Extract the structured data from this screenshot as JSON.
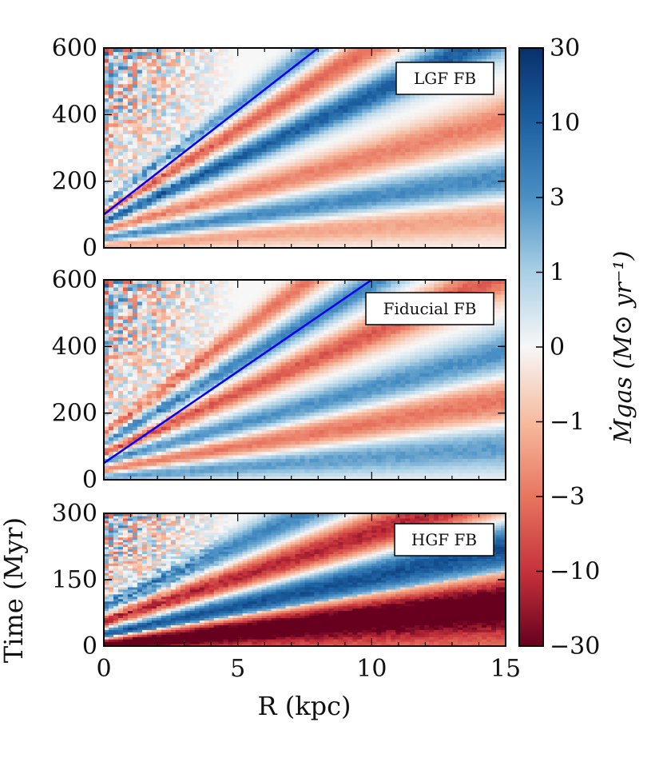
{
  "chart_data": {
    "type": "heatmap",
    "shared_x_axis": {
      "label": "R  (kpc)",
      "range": [
        0,
        15
      ],
      "ticks": [
        "0",
        "5",
        "10",
        "15"
      ]
    },
    "shared_y_axis": {
      "label": "Time  (Myr)"
    },
    "colorbar": {
      "label": "Ṁgas  (M⊙ yr⁻¹)",
      "scale": "symlog",
      "range": [
        -30,
        30
      ],
      "ticks": [
        "30",
        "10",
        "3",
        "1",
        "0",
        "−1",
        "−3",
        "−10",
        "−30"
      ],
      "colors": {
        "positive_max": "#08306b",
        "positive_mid": "#4a90c4",
        "zero": "#f7f7f7",
        "negative_mid": "#e8755f",
        "negative_max": "#67001f"
      }
    },
    "panels": [
      {
        "label": "LGF FB",
        "ylim": [
          0,
          600
        ],
        "yticks": [
          "0",
          "200",
          "400",
          "600"
        ],
        "reference_line": {
          "color": "#0000ff",
          "x": [
            0,
            8
          ],
          "y": [
            100,
            600
          ]
        },
        "bands": [
          {
            "sign": "negative",
            "amplitude": 0.35,
            "t0": 10,
            "slope": 6
          },
          {
            "sign": "positive",
            "amplitude": 0.55,
            "t0": 30,
            "slope": 12
          },
          {
            "sign": "negative",
            "amplitude": 0.45,
            "t0": 55,
            "slope": 22
          },
          {
            "sign": "positive",
            "amplitude": 0.75,
            "t0": 80,
            "slope": 38
          },
          {
            "sign": "negative",
            "amplitude": 0.55,
            "t0": 105,
            "slope": 50
          },
          {
            "sign": "positive",
            "amplitude": 0.45,
            "t0": 130,
            "slope": 60
          }
        ]
      },
      {
        "label": "Fiducial FB",
        "ylim": [
          0,
          600
        ],
        "yticks": [
          "0",
          "200",
          "400",
          "600"
        ],
        "reference_line": {
          "color": "#0000ff",
          "x": [
            0,
            10
          ],
          "y": [
            50,
            600
          ]
        },
        "bands": [
          {
            "sign": "positive",
            "amplitude": 0.45,
            "t0": 10,
            "slope": 6
          },
          {
            "sign": "negative",
            "amplitude": 0.5,
            "t0": 30,
            "slope": 14
          },
          {
            "sign": "positive",
            "amplitude": 0.5,
            "t0": 55,
            "slope": 22
          },
          {
            "sign": "negative",
            "amplitude": 0.6,
            "t0": 80,
            "slope": 36
          },
          {
            "sign": "positive",
            "amplitude": 0.55,
            "t0": 110,
            "slope": 48
          },
          {
            "sign": "negative",
            "amplitude": 0.5,
            "t0": 140,
            "slope": 60
          }
        ]
      },
      {
        "label": "HGF FB",
        "ylim": [
          0,
          300
        ],
        "yticks": [
          "0",
          "150",
          "300"
        ],
        "reference_line": null,
        "bands": [
          {
            "sign": "negative",
            "amplitude": 0.85,
            "t0": 5,
            "slope": 6
          },
          {
            "sign": "positive",
            "amplitude": 0.85,
            "t0": 25,
            "slope": 13
          },
          {
            "sign": "negative",
            "amplitude": 0.8,
            "t0": 55,
            "slope": 20
          },
          {
            "sign": "positive",
            "amplitude": 0.55,
            "t0": 90,
            "slope": 28
          }
        ]
      }
    ]
  }
}
